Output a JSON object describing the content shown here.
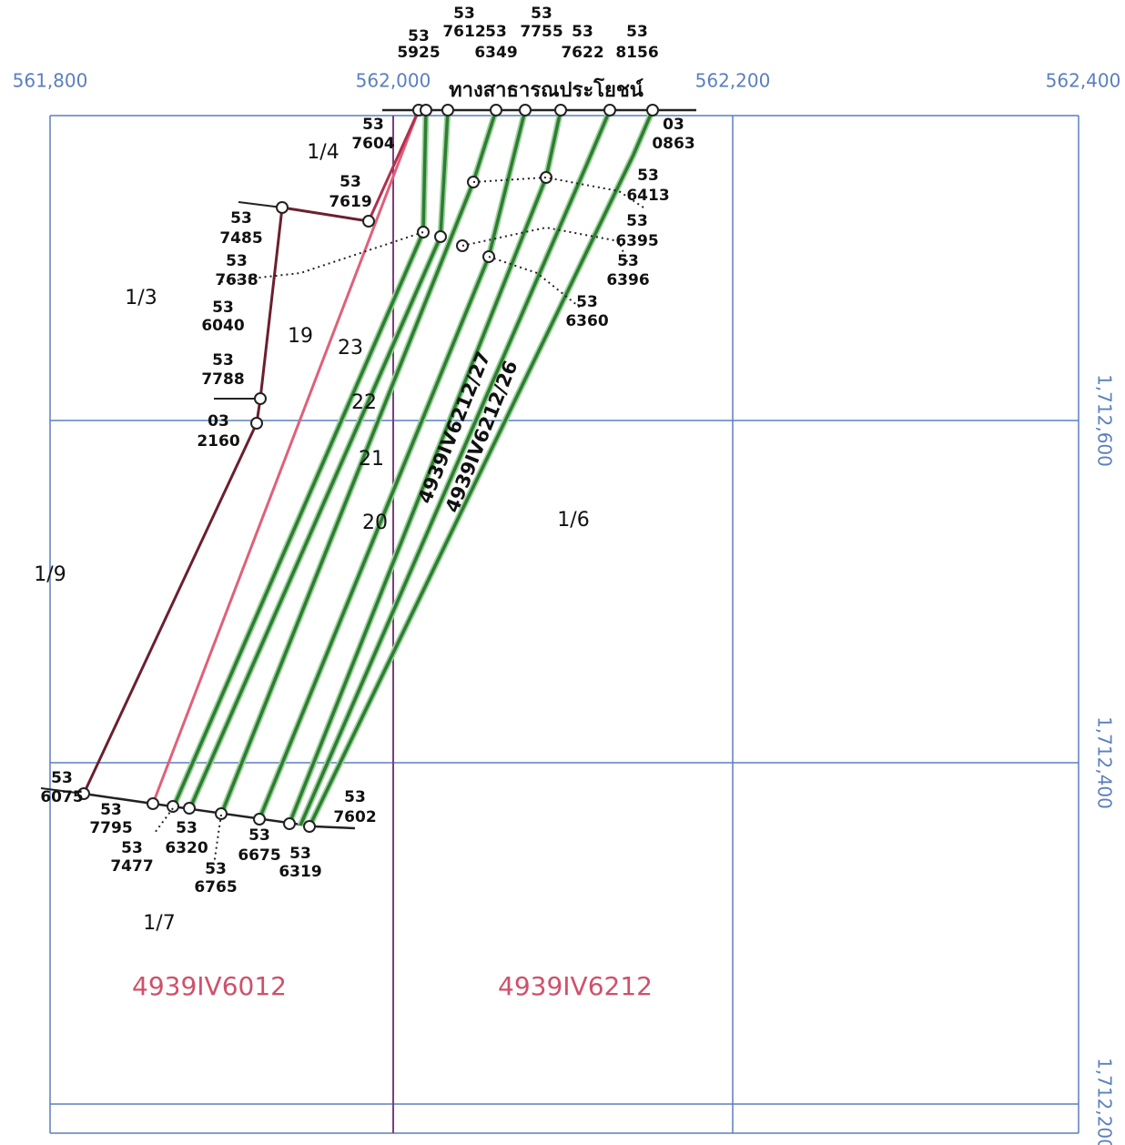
{
  "grid": {
    "x_labels": [
      "561,800",
      "562,000",
      "562,200",
      "562,400"
    ],
    "y_labels": [
      "1,712,600",
      "1,712,400",
      "1,712,200"
    ]
  },
  "road_label": "ทางสาธารณประโยชน์",
  "parcels": [
    "1/3",
    "1/4",
    "1/6",
    "1/7",
    "1/9"
  ],
  "strips": [
    "19",
    "20",
    "21",
    "22",
    "23"
  ],
  "sheets": [
    "4939IV6012",
    "4939IV6212"
  ],
  "strip_codes": [
    "4939IV6212/27",
    "4939IV6212/26"
  ],
  "markers": [
    {
      "prefix": "53",
      "number": "5925"
    },
    {
      "prefix": "53",
      "number": "7612"
    },
    {
      "prefix": "53",
      "number": "6349"
    },
    {
      "prefix": "53",
      "number": "7755"
    },
    {
      "prefix": "53",
      "number": "7622"
    },
    {
      "prefix": "53",
      "number": "8156"
    },
    {
      "prefix": "53",
      "number": "7604"
    },
    {
      "prefix": "03",
      "number": "0863"
    },
    {
      "prefix": "53",
      "number": "7619"
    },
    {
      "prefix": "53",
      "number": "7485"
    },
    {
      "prefix": "53",
      "number": "7638"
    },
    {
      "prefix": "53",
      "number": "6040"
    },
    {
      "prefix": "53",
      "number": "7788"
    },
    {
      "prefix": "03",
      "number": "2160"
    },
    {
      "prefix": "53",
      "number": "6413"
    },
    {
      "prefix": "53",
      "number": "6395"
    },
    {
      "prefix": "53",
      "number": "6396"
    },
    {
      "prefix": "53",
      "number": "6360"
    },
    {
      "prefix": "53",
      "number": "6075"
    },
    {
      "prefix": "53",
      "number": "7795"
    },
    {
      "prefix": "53",
      "number": "7477"
    },
    {
      "prefix": "53",
      "number": "6320"
    },
    {
      "prefix": "53",
      "number": "6765"
    },
    {
      "prefix": "53",
      "number": "6675"
    },
    {
      "prefix": "53",
      "number": "6319"
    },
    {
      "prefix": "53",
      "number": "7602"
    }
  ]
}
